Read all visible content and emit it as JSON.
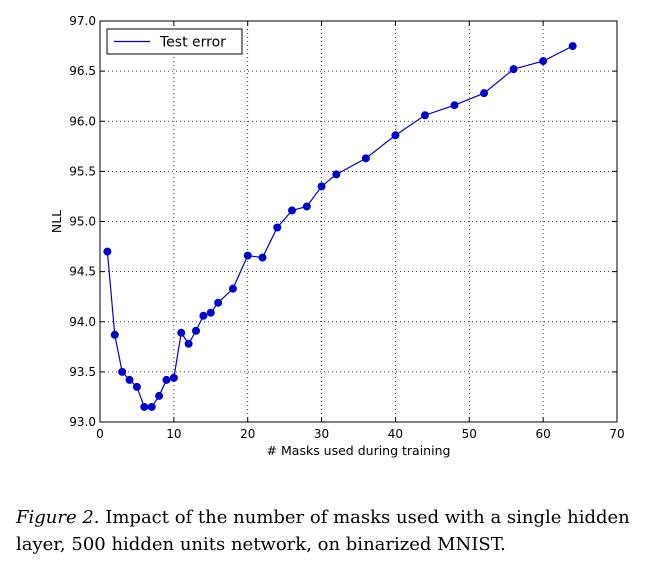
{
  "chart_data": {
    "type": "line",
    "xlabel": "# Masks used during training",
    "ylabel": "NLL",
    "xlim": [
      0,
      70
    ],
    "ylim": [
      93.0,
      97.0
    ],
    "xticks": [
      0,
      10,
      20,
      30,
      40,
      50,
      60,
      70
    ],
    "yticks": [
      93.0,
      93.5,
      94.0,
      94.5,
      95.0,
      95.5,
      96.0,
      96.5,
      97.0
    ],
    "grid": true,
    "legend_position": "top-left",
    "series": [
      {
        "name": "Test error",
        "color": "#0000cc",
        "x": [
          1,
          2,
          3,
          4,
          5,
          6,
          7,
          8,
          9,
          10,
          11,
          12,
          13,
          14,
          15,
          16,
          18,
          20,
          22,
          24,
          26,
          28,
          30,
          32,
          36,
          40,
          44,
          48,
          52,
          56,
          60,
          64
        ],
        "y": [
          94.7,
          93.87,
          93.5,
          93.42,
          93.35,
          93.15,
          93.15,
          93.26,
          93.42,
          93.44,
          93.89,
          93.78,
          93.91,
          94.06,
          94.09,
          94.19,
          94.33,
          94.66,
          94.64,
          94.94,
          95.11,
          95.15,
          95.35,
          95.47,
          95.63,
          95.86,
          96.06,
          96.16,
          96.28,
          96.52,
          96.6,
          96.75
        ]
      }
    ]
  },
  "caption": {
    "label": "Figure 2.",
    "text": " Impact of the number of masks used with a single hidden layer, 500 hidden units network, on binarized MNIST."
  }
}
